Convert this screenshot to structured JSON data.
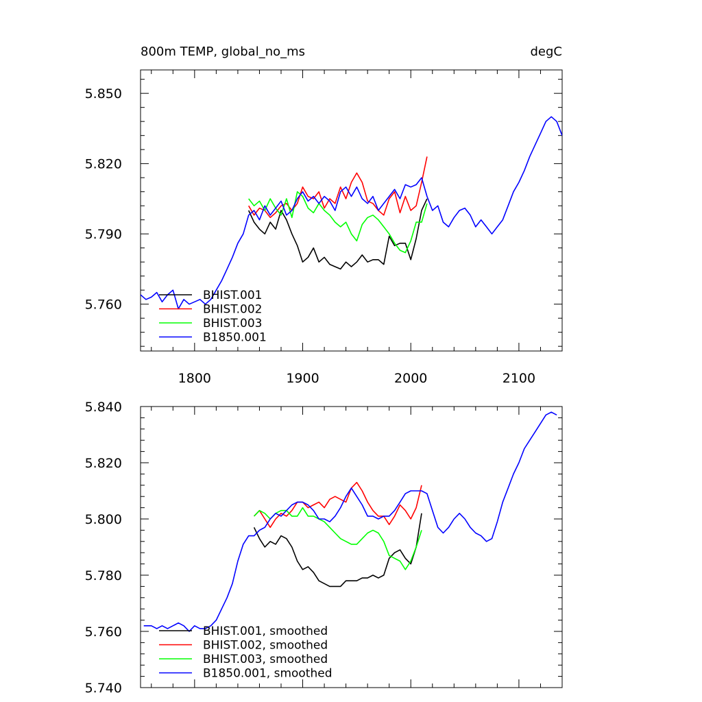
{
  "chart_data": [
    {
      "type": "line",
      "title": "800m TEMP, global_no_ms",
      "units": "degC",
      "xlim": [
        1750,
        2140
      ],
      "ylim": [
        5.74,
        5.86
      ],
      "x_ticks": [
        1800,
        1900,
        2000,
        2100
      ],
      "x_tick_labels": [
        "1800",
        "1900",
        "2000",
        "2100"
      ],
      "y_ticks": [
        5.76,
        5.79,
        5.82,
        5.85
      ],
      "y_tick_labels": [
        "5.760",
        "5.790",
        "5.820",
        "5.850"
      ],
      "grid": false,
      "legend_position": "bottom-left",
      "series": [
        {
          "name": "BHIST.001",
          "color": "#000000",
          "x": [
            1850,
            1855,
            1860,
            1865,
            1870,
            1875,
            1880,
            1885,
            1890,
            1895,
            1900,
            1905,
            1910,
            1915,
            1920,
            1925,
            1930,
            1935,
            1940,
            1945,
            1950,
            1955,
            1960,
            1965,
            1970,
            1975,
            1980,
            1985,
            1990,
            1995,
            2000,
            2005,
            2010,
            2015
          ],
          "y": [
            5.8,
            5.795,
            5.792,
            5.79,
            5.795,
            5.792,
            5.8,
            5.796,
            5.79,
            5.785,
            5.778,
            5.78,
            5.784,
            5.778,
            5.78,
            5.777,
            5.776,
            5.775,
            5.778,
            5.776,
            5.778,
            5.781,
            5.778,
            5.779,
            5.779,
            5.777,
            5.789,
            5.785,
            5.786,
            5.786,
            5.779,
            5.788,
            5.8,
            5.805
          ]
        },
        {
          "name": "BHIST.002",
          "color": "#ff0000",
          "x": [
            1850,
            1855,
            1860,
            1865,
            1870,
            1875,
            1880,
            1885,
            1890,
            1895,
            1900,
            1905,
            1910,
            1915,
            1920,
            1925,
            1930,
            1935,
            1940,
            1945,
            1950,
            1955,
            1960,
            1965,
            1970,
            1975,
            1980,
            1985,
            1990,
            1995,
            2000,
            2005,
            2010,
            2015
          ],
          "y": [
            5.802,
            5.798,
            5.801,
            5.8,
            5.797,
            5.799,
            5.802,
            5.803,
            5.8,
            5.803,
            5.81,
            5.806,
            5.805,
            5.808,
            5.801,
            5.805,
            5.803,
            5.81,
            5.805,
            5.812,
            5.816,
            5.812,
            5.804,
            5.803,
            5.8,
            5.798,
            5.805,
            5.808,
            5.799,
            5.806,
            5.8,
            5.802,
            5.812,
            5.823
          ]
        },
        {
          "name": "BHIST.003",
          "color": "#00ff00",
          "x": [
            1850,
            1855,
            1860,
            1865,
            1870,
            1875,
            1880,
            1885,
            1890,
            1895,
            1900,
            1905,
            1910,
            1915,
            1920,
            1925,
            1930,
            1935,
            1940,
            1945,
            1950,
            1955,
            1960,
            1965,
            1970,
            1975,
            1980,
            1985,
            1990,
            1995,
            2000,
            2005,
            2010,
            2015
          ],
          "y": [
            5.805,
            5.802,
            5.804,
            5.8,
            5.805,
            5.801,
            5.798,
            5.805,
            5.797,
            5.808,
            5.806,
            5.801,
            5.799,
            5.803,
            5.8,
            5.798,
            5.795,
            5.793,
            5.795,
            5.79,
            5.787,
            5.794,
            5.797,
            5.798,
            5.796,
            5.793,
            5.79,
            5.786,
            5.783,
            5.782,
            5.787,
            5.795,
            5.795,
            5.803
          ]
        },
        {
          "name": "B1850.001",
          "color": "#0000ff",
          "x": [
            1750,
            1755,
            1760,
            1765,
            1770,
            1775,
            1780,
            1785,
            1790,
            1795,
            1800,
            1805,
            1810,
            1815,
            1820,
            1825,
            1830,
            1835,
            1840,
            1845,
            1850,
            1855,
            1860,
            1865,
            1870,
            1875,
            1880,
            1885,
            1890,
            1895,
            1900,
            1905,
            1910,
            1915,
            1920,
            1925,
            1930,
            1935,
            1940,
            1945,
            1950,
            1955,
            1960,
            1965,
            1970,
            1975,
            1980,
            1985,
            1990,
            1995,
            2000,
            2005,
            2010,
            2015,
            2020,
            2025,
            2030,
            2035,
            2040,
            2045,
            2050,
            2055,
            2060,
            2065,
            2070,
            2075,
            2080,
            2085,
            2090,
            2095,
            2100,
            2105,
            2110,
            2115,
            2120,
            2125,
            2130,
            2135,
            2140
          ],
          "y": [
            5.764,
            5.762,
            5.763,
            5.765,
            5.761,
            5.764,
            5.766,
            5.758,
            5.762,
            5.76,
            5.761,
            5.762,
            5.76,
            5.762,
            5.766,
            5.77,
            5.775,
            5.78,
            5.786,
            5.79,
            5.798,
            5.8,
            5.796,
            5.802,
            5.798,
            5.801,
            5.804,
            5.798,
            5.8,
            5.805,
            5.808,
            5.804,
            5.806,
            5.803,
            5.806,
            5.804,
            5.8,
            5.808,
            5.81,
            5.806,
            5.81,
            5.805,
            5.803,
            5.806,
            5.8,
            5.803,
            5.806,
            5.809,
            5.805,
            5.811,
            5.81,
            5.811,
            5.814,
            5.806,
            5.8,
            5.802,
            5.795,
            5.793,
            5.797,
            5.8,
            5.801,
            5.798,
            5.793,
            5.796,
            5.793,
            5.79,
            5.793,
            5.796,
            5.802,
            5.808,
            5.812,
            5.817,
            5.823,
            5.828,
            5.833,
            5.838,
            5.84,
            5.838,
            5.832
          ]
        }
      ]
    },
    {
      "type": "line",
      "xlim": [
        1750,
        2140
      ],
      "ylim": [
        5.74,
        5.84
      ],
      "x_ticks": [
        1800,
        1900,
        2000,
        2100
      ],
      "y_ticks": [
        5.74,
        5.76,
        5.78,
        5.8,
        5.82,
        5.84
      ],
      "y_tick_labels": [
        "5.740",
        "5.760",
        "5.780",
        "5.800",
        "5.820",
        "5.840"
      ],
      "grid": false,
      "legend_position": "bottom-left",
      "series": [
        {
          "name": "BHIST.001, smoothed",
          "color": "#000000",
          "x": [
            1855,
            1860,
            1865,
            1870,
            1875,
            1880,
            1885,
            1890,
            1895,
            1900,
            1905,
            1910,
            1915,
            1920,
            1925,
            1930,
            1935,
            1940,
            1945,
            1950,
            1955,
            1960,
            1965,
            1970,
            1975,
            1980,
            1985,
            1990,
            1995,
            2000,
            2005,
            2010
          ],
          "y": [
            5.797,
            5.793,
            5.79,
            5.792,
            5.791,
            5.794,
            5.793,
            5.79,
            5.785,
            5.782,
            5.783,
            5.781,
            5.778,
            5.777,
            5.776,
            5.776,
            5.776,
            5.778,
            5.778,
            5.778,
            5.779,
            5.779,
            5.78,
            5.779,
            5.78,
            5.786,
            5.788,
            5.789,
            5.786,
            5.784,
            5.79,
            5.802
          ]
        },
        {
          "name": "BHIST.002, smoothed",
          "color": "#ff0000",
          "x": [
            1855,
            1860,
            1865,
            1870,
            1875,
            1880,
            1885,
            1890,
            1895,
            1900,
            1905,
            1910,
            1915,
            1920,
            1925,
            1930,
            1935,
            1940,
            1945,
            1950,
            1955,
            1960,
            1965,
            1970,
            1975,
            1980,
            1985,
            1990,
            1995,
            2000,
            2005,
            2010
          ],
          "y": [
            5.801,
            5.803,
            5.8,
            5.797,
            5.8,
            5.802,
            5.801,
            5.803,
            5.806,
            5.806,
            5.804,
            5.805,
            5.806,
            5.804,
            5.807,
            5.808,
            5.807,
            5.806,
            5.811,
            5.813,
            5.81,
            5.806,
            5.803,
            5.801,
            5.801,
            5.798,
            5.801,
            5.805,
            5.803,
            5.8,
            5.804,
            5.812
          ]
        },
        {
          "name": "BHIST.003, smoothed",
          "color": "#00ff00",
          "x": [
            1855,
            1860,
            1865,
            1870,
            1875,
            1880,
            1885,
            1890,
            1895,
            1900,
            1905,
            1910,
            1915,
            1920,
            1925,
            1930,
            1935,
            1940,
            1945,
            1950,
            1955,
            1960,
            1965,
            1970,
            1975,
            1980,
            1985,
            1990,
            1995,
            2000,
            2005,
            2010
          ],
          "y": [
            5.801,
            5.803,
            5.802,
            5.8,
            5.802,
            5.803,
            5.803,
            5.801,
            5.801,
            5.804,
            5.801,
            5.801,
            5.8,
            5.799,
            5.797,
            5.795,
            5.793,
            5.792,
            5.791,
            5.791,
            5.793,
            5.795,
            5.796,
            5.795,
            5.792,
            5.787,
            5.786,
            5.785,
            5.782,
            5.785,
            5.79,
            5.796
          ]
        },
        {
          "name": "B1850.001, smoothed",
          "color": "#0000ff",
          "x": [
            1753,
            1760,
            1765,
            1770,
            1775,
            1780,
            1785,
            1790,
            1795,
            1800,
            1805,
            1810,
            1815,
            1820,
            1825,
            1830,
            1835,
            1840,
            1845,
            1850,
            1855,
            1860,
            1865,
            1870,
            1875,
            1880,
            1885,
            1890,
            1895,
            1900,
            1905,
            1910,
            1915,
            1920,
            1925,
            1930,
            1935,
            1940,
            1945,
            1950,
            1955,
            1960,
            1965,
            1970,
            1975,
            1980,
            1985,
            1990,
            1995,
            2000,
            2005,
            2010,
            2015,
            2020,
            2025,
            2030,
            2035,
            2040,
            2045,
            2050,
            2055,
            2060,
            2065,
            2070,
            2075,
            2080,
            2085,
            2090,
            2095,
            2100,
            2105,
            2110,
            2115,
            2120,
            2125,
            2130,
            2135
          ],
          "y": [
            5.762,
            5.762,
            5.761,
            5.762,
            5.761,
            5.762,
            5.763,
            5.762,
            5.76,
            5.762,
            5.761,
            5.761,
            5.762,
            5.764,
            5.768,
            5.772,
            5.777,
            5.785,
            5.791,
            5.794,
            5.794,
            5.796,
            5.797,
            5.8,
            5.802,
            5.801,
            5.803,
            5.805,
            5.806,
            5.806,
            5.805,
            5.803,
            5.8,
            5.8,
            5.799,
            5.801,
            5.804,
            5.808,
            5.811,
            5.808,
            5.805,
            5.801,
            5.801,
            5.8,
            5.801,
            5.801,
            5.803,
            5.806,
            5.809,
            5.81,
            5.81,
            5.81,
            5.809,
            5.803,
            5.797,
            5.795,
            5.797,
            5.8,
            5.802,
            5.8,
            5.797,
            5.795,
            5.794,
            5.792,
            5.793,
            5.799,
            5.806,
            5.811,
            5.816,
            5.82,
            5.825,
            5.828,
            5.831,
            5.834,
            5.837,
            5.838,
            5.837
          ]
        }
      ]
    }
  ]
}
